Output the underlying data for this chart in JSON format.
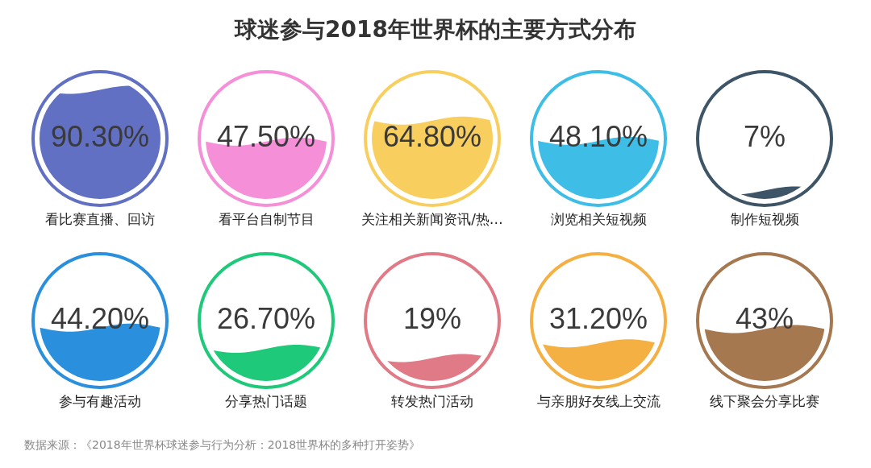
{
  "chart_data": {
    "type": "other",
    "title": "球迷参与2018年世界杯的主要方式分布",
    "categories": [
      "看比赛直播、回访",
      "看平台自制节目",
      "关注相关新闻资讯/热…",
      "浏览相关短视频",
      "制作短视频",
      "参与有趣活动",
      "分享热门话题",
      "转发热门活动",
      "与亲朋好友线上交流",
      "线下聚会分享比赛"
    ],
    "values": [
      90.3,
      47.5,
      64.8,
      48.1,
      7,
      44.2,
      26.7,
      19,
      31.2,
      43
    ],
    "value_labels": [
      "90.30%",
      "47.50%",
      "64.80%",
      "48.10%",
      "7%",
      "44.20%",
      "26.70%",
      "19%",
      "31.20%",
      "43%"
    ],
    "colors": [
      "#6270c4",
      "#f48fd8",
      "#f8cf5f",
      "#3ebde6",
      "#3d5566",
      "#2a8fdc",
      "#1fc97a",
      "#e07a86",
      "#f5b043",
      "#a67850"
    ],
    "annotations": [
      "数据来源：《2018年世界杯球迷参与行为分析：2018世界杯的多种打开姿势》"
    ]
  }
}
